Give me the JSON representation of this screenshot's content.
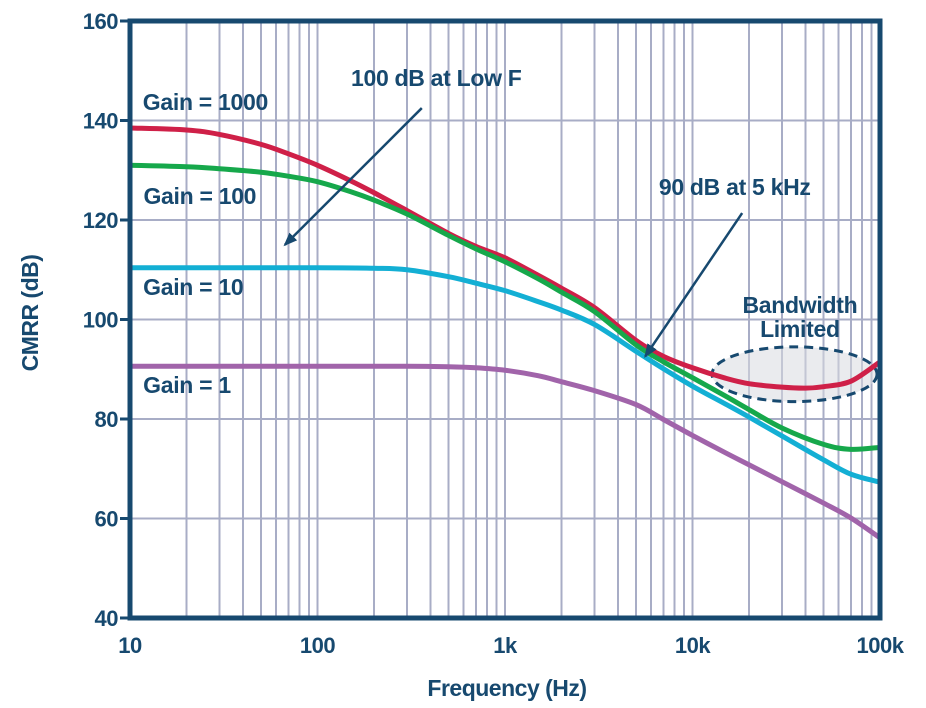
{
  "page": {
    "background": "#ffffff"
  },
  "chart_data": {
    "type": "line",
    "title": "",
    "xlabel": "Frequency (Hz)",
    "ylabel": "CMRR (dB)",
    "x_scale": "log",
    "xlim": [
      10,
      100000
    ],
    "ylim": [
      40,
      160
    ],
    "grid": true,
    "legend_position": "on-curve-labels",
    "colors": {
      "axis": "#17496f",
      "grid": "#a8adc6",
      "text": "#17496f",
      "ellipse_fill": "#d8dae0"
    },
    "x_tick_labels": [
      "10",
      "100",
      "1k",
      "10k",
      "100k"
    ],
    "x_tick_values": [
      10,
      100,
      1000,
      10000,
      100000
    ],
    "y_tick_labels": [
      "160",
      "140",
      "120",
      "100",
      "80",
      "60",
      "40"
    ],
    "y_tick_values": [
      160,
      140,
      120,
      100,
      80,
      60,
      40
    ],
    "series": [
      {
        "name": "Gain = 1000",
        "color": "#cf2048",
        "label_pos": {
          "f": 11.7,
          "db": 143.7
        },
        "points": [
          [
            10,
            138.5
          ],
          [
            20,
            138.1
          ],
          [
            30,
            137.2
          ],
          [
            50,
            135.2
          ],
          [
            70,
            133.3
          ],
          [
            100,
            131.0
          ],
          [
            150,
            127.9
          ],
          [
            200,
            125.5
          ],
          [
            300,
            121.9
          ],
          [
            500,
            117.3
          ],
          [
            700,
            114.7
          ],
          [
            1000,
            112.4
          ],
          [
            1500,
            108.9
          ],
          [
            2000,
            106.3
          ],
          [
            3000,
            102.4
          ],
          [
            5000,
            95.8
          ],
          [
            7000,
            92.6
          ],
          [
            10000,
            90.3
          ],
          [
            15000,
            88.2
          ],
          [
            20000,
            87.1
          ],
          [
            30000,
            86.4
          ],
          [
            40000,
            86.2
          ],
          [
            50000,
            86.5
          ],
          [
            70000,
            87.6
          ],
          [
            100000,
            91.5
          ]
        ]
      },
      {
        "name": "Gain = 100",
        "color": "#16a84b",
        "label_pos": {
          "f": 11.8,
          "db": 124.8
        },
        "points": [
          [
            10,
            131.0
          ],
          [
            20,
            130.7
          ],
          [
            30,
            130.3
          ],
          [
            50,
            129.6
          ],
          [
            70,
            128.8
          ],
          [
            100,
            127.7
          ],
          [
            150,
            125.7
          ],
          [
            200,
            124.0
          ],
          [
            300,
            121.2
          ],
          [
            500,
            116.9
          ],
          [
            700,
            114.2
          ],
          [
            1000,
            111.6
          ],
          [
            1500,
            108.2
          ],
          [
            2000,
            105.5
          ],
          [
            3000,
            101.6
          ],
          [
            5000,
            94.9
          ],
          [
            7000,
            91.5
          ],
          [
            10000,
            88.3
          ],
          [
            15000,
            84.6
          ],
          [
            20000,
            81.9
          ],
          [
            30000,
            78.2
          ],
          [
            50000,
            74.9
          ],
          [
            70000,
            73.9
          ],
          [
            100000,
            74.3
          ]
        ]
      },
      {
        "name": "Gain = 10",
        "color": "#13afd4",
        "label_pos": {
          "f": 11.75,
          "db": 106.5
        },
        "points": [
          [
            10,
            110.4
          ],
          [
            100,
            110.4
          ],
          [
            200,
            110.3
          ],
          [
            300,
            110.0
          ],
          [
            500,
            108.6
          ],
          [
            700,
            107.3
          ],
          [
            1000,
            105.8
          ],
          [
            1500,
            103.6
          ],
          [
            2000,
            101.9
          ],
          [
            3000,
            99.0
          ],
          [
            5000,
            93.6
          ],
          [
            7000,
            90.1
          ],
          [
            10000,
            86.6
          ],
          [
            15000,
            83.0
          ],
          [
            20000,
            80.4
          ],
          [
            30000,
            76.6
          ],
          [
            50000,
            71.8
          ],
          [
            70000,
            68.9
          ],
          [
            100000,
            67.3
          ]
        ]
      },
      {
        "name": "Gain = 1",
        "color": "#a164aa",
        "label_pos": {
          "f": 11.75,
          "db": 86.8
        },
        "points": [
          [
            10,
            90.6
          ],
          [
            200,
            90.6
          ],
          [
            300,
            90.6
          ],
          [
            500,
            90.5
          ],
          [
            700,
            90.3
          ],
          [
            1000,
            89.8
          ],
          [
            1500,
            88.7
          ],
          [
            2000,
            87.5
          ],
          [
            3000,
            85.7
          ],
          [
            5000,
            82.9
          ],
          [
            7000,
            79.9
          ],
          [
            10000,
            76.7
          ],
          [
            15000,
            73.2
          ],
          [
            20000,
            70.8
          ],
          [
            30000,
            67.4
          ],
          [
            50000,
            63.1
          ],
          [
            70000,
            60.1
          ],
          [
            100000,
            56.1
          ]
        ]
      }
    ],
    "annotations": [
      {
        "text": "100 dB at Low F",
        "text_pos": {
          "f": 430,
          "db": 148.5
        },
        "arrow": {
          "from": {
            "f": 360,
            "db": 142.5
          },
          "to": {
            "f": 67,
            "db": 115.0
          }
        }
      },
      {
        "text": "90 dB at 5 kHz",
        "text_pos": {
          "f": 16800,
          "db": 126.6
        },
        "arrow": {
          "from": {
            "f": 18400,
            "db": 121.4
          },
          "to": {
            "f": 5600,
            "db": 92.6
          }
        }
      }
    ],
    "bandwidth_region": {
      "label_line1": "Bandwidth",
      "label_line2": "Limited",
      "label_pos": {
        "f": 37400,
        "db": 102.9
      },
      "ellipse": {
        "center": {
          "f": 35000,
          "db": 89.0
        },
        "rx_decades": 0.44,
        "ry_db": 5.5
      }
    }
  }
}
